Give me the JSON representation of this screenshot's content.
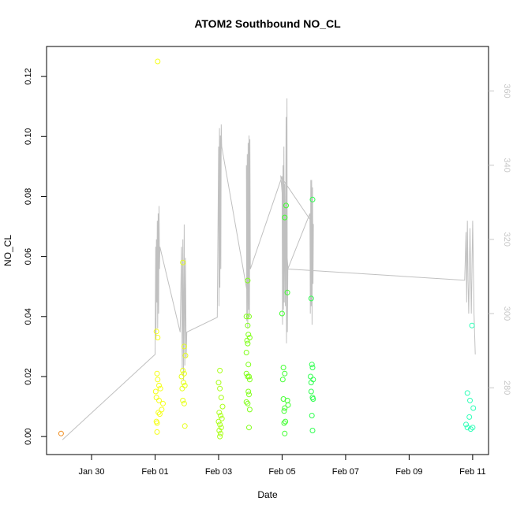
{
  "chart_data": {
    "type": "scatter",
    "title": "ATOM2 Southbound NO_CL",
    "xlabel": "Date",
    "ylabel": "NO_CL",
    "xlim": [
      "2020-01-28T14:00",
      "2020-02-11T12:00"
    ],
    "ylim": [
      -0.006,
      0.13
    ],
    "y2lim": [
      262,
      372
    ],
    "x_ticks": [
      {
        "label": "Jan 30",
        "date": "2020-01-30"
      },
      {
        "label": "Feb 01",
        "date": "2020-02-01"
      },
      {
        "label": "Feb 03",
        "date": "2020-02-03"
      },
      {
        "label": "Feb 05",
        "date": "2020-02-05"
      },
      {
        "label": "Feb 07",
        "date": "2020-02-07"
      },
      {
        "label": "Feb 09",
        "date": "2020-02-09"
      },
      {
        "label": "Feb 11",
        "date": "2020-02-11"
      }
    ],
    "y_ticks": [
      0.0,
      0.02,
      0.04,
      0.06,
      0.08,
      0.1,
      0.12
    ],
    "y2_ticks": [
      280,
      300,
      320,
      340,
      360
    ],
    "grid": false,
    "series": [
      {
        "marker": "open-circle",
        "color_by": "time",
        "points": [
          {
            "x": "2020-01-29T01:00",
            "y": 0.001,
            "color": "#f08c1c"
          },
          {
            "x": "2020-02-01T01:00",
            "y": 0.035,
            "color": "#f5ff1a"
          },
          {
            "x": "2020-02-01T02:00",
            "y": 0.033,
            "color": "#f5ff1a"
          },
          {
            "x": "2020-02-01T01:30",
            "y": 0.021,
            "color": "#f5ff1a"
          },
          {
            "x": "2020-02-01T02:00",
            "y": 0.019,
            "color": "#f5ff1a"
          },
          {
            "x": "2020-02-01T03:00",
            "y": 0.017,
            "color": "#f5ff1a"
          },
          {
            "x": "2020-02-01T00:30",
            "y": 0.015,
            "color": "#f5ff1a"
          },
          {
            "x": "2020-02-01T04:00",
            "y": 0.016,
            "color": "#f5ff1a"
          },
          {
            "x": "2020-02-01T01:00",
            "y": 0.013,
            "color": "#f5ff1a"
          },
          {
            "x": "2020-02-01T03:00",
            "y": 0.012,
            "color": "#f5ff1a"
          },
          {
            "x": "2020-02-01T06:00",
            "y": 0.011,
            "color": "#f5ff1a"
          },
          {
            "x": "2020-02-01T05:00",
            "y": 0.009,
            "color": "#f5ff1a"
          },
          {
            "x": "2020-02-01T02:30",
            "y": 0.008,
            "color": "#f5ff1a"
          },
          {
            "x": "2020-02-01T03:30",
            "y": 0.0075,
            "color": "#f5ff1a"
          },
          {
            "x": "2020-02-01T01:00",
            "y": 0.005,
            "color": "#f5ff1a"
          },
          {
            "x": "2020-02-01T01:30",
            "y": 0.0045,
            "color": "#f5ff1a"
          },
          {
            "x": "2020-02-01T01:30",
            "y": 0.0015,
            "color": "#f5ff1a"
          },
          {
            "x": "2020-02-01T02:00",
            "y": 0.125,
            "color": "#f5ff1a"
          },
          {
            "x": "2020-02-01T21:00",
            "y": 0.058,
            "color": "#e6ff1a"
          },
          {
            "x": "2020-02-01T22:00",
            "y": 0.03,
            "color": "#e6ff1a"
          },
          {
            "x": "2020-02-01T23:00",
            "y": 0.027,
            "color": "#e6ff1a"
          },
          {
            "x": "2020-02-01T21:00",
            "y": 0.022,
            "color": "#e6ff1a"
          },
          {
            "x": "2020-02-01T22:00",
            "y": 0.021,
            "color": "#e6ff1a"
          },
          {
            "x": "2020-02-01T20:00",
            "y": 0.02,
            "color": "#e6ff1a"
          },
          {
            "x": "2020-02-01T21:30",
            "y": 0.018,
            "color": "#e6ff1a"
          },
          {
            "x": "2020-02-01T22:30",
            "y": 0.017,
            "color": "#e6ff1a"
          },
          {
            "x": "2020-02-01T20:30",
            "y": 0.016,
            "color": "#e6ff1a"
          },
          {
            "x": "2020-02-01T21:00",
            "y": 0.012,
            "color": "#e6ff1a"
          },
          {
            "x": "2020-02-01T22:00",
            "y": 0.011,
            "color": "#e6ff1a"
          },
          {
            "x": "2020-02-01T22:30",
            "y": 0.0035,
            "color": "#e6ff1a"
          },
          {
            "x": "2020-02-03T01:00",
            "y": 0.022,
            "color": "#aaff1a"
          },
          {
            "x": "2020-02-03T00:00",
            "y": 0.018,
            "color": "#aaff1a"
          },
          {
            "x": "2020-02-03T01:00",
            "y": 0.016,
            "color": "#aaff1a"
          },
          {
            "x": "2020-02-03T02:00",
            "y": 0.013,
            "color": "#aaff1a"
          },
          {
            "x": "2020-02-03T03:00",
            "y": 0.01,
            "color": "#aaff1a"
          },
          {
            "x": "2020-02-03T00:30",
            "y": 0.008,
            "color": "#aaff1a"
          },
          {
            "x": "2020-02-03T01:30",
            "y": 0.007,
            "color": "#aaff1a"
          },
          {
            "x": "2020-02-03T02:30",
            "y": 0.006,
            "color": "#aaff1a"
          },
          {
            "x": "2020-02-03T00:00",
            "y": 0.005,
            "color": "#aaff1a"
          },
          {
            "x": "2020-02-03T01:00",
            "y": 0.004,
            "color": "#aaff1a"
          },
          {
            "x": "2020-02-03T02:00",
            "y": 0.003,
            "color": "#aaff1a"
          },
          {
            "x": "2020-02-03T00:30",
            "y": 0.002,
            "color": "#aaff1a"
          },
          {
            "x": "2020-02-03T01:30",
            "y": 0.001,
            "color": "#aaff1a"
          },
          {
            "x": "2020-02-03T01:00",
            "y": 0.0,
            "color": "#aaff1a"
          },
          {
            "x": "2020-02-03T22:00",
            "y": 0.052,
            "color": "#80ff1a"
          },
          {
            "x": "2020-02-03T21:00",
            "y": 0.04,
            "color": "#80ff1a"
          },
          {
            "x": "2020-02-03T23:00",
            "y": 0.04,
            "color": "#80ff1a"
          },
          {
            "x": "2020-02-03T22:00",
            "y": 0.037,
            "color": "#80ff1a"
          },
          {
            "x": "2020-02-03T22:30",
            "y": 0.034,
            "color": "#80ff1a"
          },
          {
            "x": "2020-02-03T23:30",
            "y": 0.033,
            "color": "#80ff1a"
          },
          {
            "x": "2020-02-03T21:30",
            "y": 0.032,
            "color": "#80ff1a"
          },
          {
            "x": "2020-02-03T22:00",
            "y": 0.031,
            "color": "#80ff1a"
          },
          {
            "x": "2020-02-03T21:00",
            "y": 0.028,
            "color": "#80ff1a"
          },
          {
            "x": "2020-02-03T22:30",
            "y": 0.024,
            "color": "#80ff1a"
          },
          {
            "x": "2020-02-03T21:00",
            "y": 0.021,
            "color": "#80ff1a"
          },
          {
            "x": "2020-02-03T22:00",
            "y": 0.02,
            "color": "#80ff1a"
          },
          {
            "x": "2020-02-03T23:00",
            "y": 0.02,
            "color": "#80ff1a"
          },
          {
            "x": "2020-02-03T23:30",
            "y": 0.019,
            "color": "#80ff1a"
          },
          {
            "x": "2020-02-03T22:30",
            "y": 0.015,
            "color": "#80ff1a"
          },
          {
            "x": "2020-02-03T23:00",
            "y": 0.014,
            "color": "#80ff1a"
          },
          {
            "x": "2020-02-03T21:00",
            "y": 0.0115,
            "color": "#80ff1a"
          },
          {
            "x": "2020-02-03T22:00",
            "y": 0.011,
            "color": "#80ff1a"
          },
          {
            "x": "2020-02-03T23:30",
            "y": 0.009,
            "color": "#80ff1a"
          },
          {
            "x": "2020-02-03T23:00",
            "y": 0.003,
            "color": "#80ff1a"
          },
          {
            "x": "2020-02-05T03:00",
            "y": 0.077,
            "color": "#40ff30"
          },
          {
            "x": "2020-02-05T02:00",
            "y": 0.073,
            "color": "#40ff30"
          },
          {
            "x": "2020-02-05T04:00",
            "y": 0.048,
            "color": "#40ff30"
          },
          {
            "x": "2020-02-05T00:00",
            "y": 0.041,
            "color": "#40ff30"
          },
          {
            "x": "2020-02-05T01:00",
            "y": 0.023,
            "color": "#40ff30"
          },
          {
            "x": "2020-02-05T02:00",
            "y": 0.021,
            "color": "#40ff30"
          },
          {
            "x": "2020-02-05T00:30",
            "y": 0.019,
            "color": "#40ff30"
          },
          {
            "x": "2020-02-05T01:00",
            "y": 0.0125,
            "color": "#40ff30"
          },
          {
            "x": "2020-02-05T04:00",
            "y": 0.012,
            "color": "#40ff30"
          },
          {
            "x": "2020-02-05T04:30",
            "y": 0.0105,
            "color": "#40ff30"
          },
          {
            "x": "2020-02-05T02:00",
            "y": 0.0095,
            "color": "#40ff30"
          },
          {
            "x": "2020-02-05T01:30",
            "y": 0.0085,
            "color": "#40ff30"
          },
          {
            "x": "2020-02-05T02:30",
            "y": 0.005,
            "color": "#40ff30"
          },
          {
            "x": "2020-02-05T01:30",
            "y": 0.0045,
            "color": "#40ff30"
          },
          {
            "x": "2020-02-05T02:00",
            "y": 0.001,
            "color": "#40ff30"
          },
          {
            "x": "2020-02-05T23:00",
            "y": 0.079,
            "color": "#30ff50"
          },
          {
            "x": "2020-02-05T22:00",
            "y": 0.046,
            "color": "#30ff50"
          },
          {
            "x": "2020-02-05T22:30",
            "y": 0.024,
            "color": "#30ff50"
          },
          {
            "x": "2020-02-05T23:00",
            "y": 0.023,
            "color": "#30ff50"
          },
          {
            "x": "2020-02-05T21:30",
            "y": 0.02,
            "color": "#30ff50"
          },
          {
            "x": "2020-02-05T22:00",
            "y": 0.018,
            "color": "#30ff50"
          },
          {
            "x": "2020-02-05T23:30",
            "y": 0.019,
            "color": "#30ff50"
          },
          {
            "x": "2020-02-05T22:00",
            "y": 0.015,
            "color": "#30ff50"
          },
          {
            "x": "2020-02-05T23:00",
            "y": 0.013,
            "color": "#30ff50"
          },
          {
            "x": "2020-02-05T23:30",
            "y": 0.0125,
            "color": "#30ff50"
          },
          {
            "x": "2020-02-05T22:30",
            "y": 0.007,
            "color": "#30ff50"
          },
          {
            "x": "2020-02-05T23:00",
            "y": 0.002,
            "color": "#30ff50"
          },
          {
            "x": "2020-02-10T23:30",
            "y": 0.037,
            "color": "#30ffb8"
          },
          {
            "x": "2020-02-10T20:00",
            "y": 0.0145,
            "color": "#30ffb8"
          },
          {
            "x": "2020-02-10T22:00",
            "y": 0.012,
            "color": "#30ffb8"
          },
          {
            "x": "2020-02-11T00:30",
            "y": 0.0095,
            "color": "#30ffb8"
          },
          {
            "x": "2020-02-10T21:30",
            "y": 0.0065,
            "color": "#30ffb8"
          },
          {
            "x": "2020-02-10T19:00",
            "y": 0.004,
            "color": "#30ffb8"
          },
          {
            "x": "2020-02-10T20:00",
            "y": 0.003,
            "color": "#30ffb8"
          },
          {
            "x": "2020-02-11T00:00",
            "y": 0.003,
            "color": "#30ffb8"
          },
          {
            "x": "2020-02-10T22:30",
            "y": 0.0025,
            "color": "#30ffb8"
          }
        ]
      },
      {
        "axis": "right",
        "type": "line",
        "color": "#c0c0c0",
        "points": [
          {
            "x": "2020-01-29T02:00",
            "y": 266
          },
          {
            "x": "2020-02-01T00:00",
            "y": 289
          },
          {
            "x": "2020-02-01T00:30",
            "y": 318
          },
          {
            "x": "2020-02-01T00:40",
            "y": 293
          },
          {
            "x": "2020-02-01T01:00",
            "y": 320
          },
          {
            "x": "2020-02-01T01:20",
            "y": 303
          },
          {
            "x": "2020-02-01T01:40",
            "y": 325
          },
          {
            "x": "2020-02-01T02:00",
            "y": 296
          },
          {
            "x": "2020-02-01T02:20",
            "y": 327
          },
          {
            "x": "2020-02-01T02:40",
            "y": 300
          },
          {
            "x": "2020-02-01T03:00",
            "y": 329
          },
          {
            "x": "2020-02-01T03:20",
            "y": 312
          },
          {
            "x": "2020-02-01T03:40",
            "y": 318
          },
          {
            "x": "2020-02-01T19:00",
            "y": 295
          },
          {
            "x": "2020-02-01T20:00",
            "y": 318
          },
          {
            "x": "2020-02-01T20:30",
            "y": 285
          },
          {
            "x": "2020-02-01T21:00",
            "y": 320
          },
          {
            "x": "2020-02-01T21:30",
            "y": 282
          },
          {
            "x": "2020-02-01T22:00",
            "y": 324
          },
          {
            "x": "2020-02-01T22:30",
            "y": 286
          },
          {
            "x": "2020-02-01T23:00",
            "y": 315
          },
          {
            "x": "2020-02-01T23:30",
            "y": 288
          },
          {
            "x": "2020-02-02T00:00",
            "y": 295
          },
          {
            "x": "2020-02-02T23:00",
            "y": 299
          },
          {
            "x": "2020-02-03T00:00",
            "y": 345
          },
          {
            "x": "2020-02-03T00:20",
            "y": 302
          },
          {
            "x": "2020-02-03T00:40",
            "y": 350
          },
          {
            "x": "2020-02-03T01:00",
            "y": 307
          },
          {
            "x": "2020-02-03T01:20",
            "y": 348
          },
          {
            "x": "2020-02-03T01:40",
            "y": 312
          },
          {
            "x": "2020-02-03T02:00",
            "y": 351
          },
          {
            "x": "2020-02-03T02:20",
            "y": 345
          },
          {
            "x": "2020-02-03T22:00",
            "y": 305
          },
          {
            "x": "2020-02-03T21:00",
            "y": 340
          },
          {
            "x": "2020-02-03T21:20",
            "y": 298
          },
          {
            "x": "2020-02-03T21:40",
            "y": 343
          },
          {
            "x": "2020-02-03T22:00",
            "y": 296
          },
          {
            "x": "2020-02-03T22:20",
            "y": 346
          },
          {
            "x": "2020-02-03T22:40",
            "y": 301
          },
          {
            "x": "2020-02-03T23:00",
            "y": 348
          },
          {
            "x": "2020-02-03T23:20",
            "y": 299
          },
          {
            "x": "2020-02-03T23:40",
            "y": 347
          },
          {
            "x": "2020-02-04T00:00",
            "y": 312
          },
          {
            "x": "2020-02-05T00:00",
            "y": 337
          },
          {
            "x": "2020-02-05T00:20",
            "y": 297
          },
          {
            "x": "2020-02-05T00:40",
            "y": 340
          },
          {
            "x": "2020-02-05T01:00",
            "y": 301
          },
          {
            "x": "2020-02-05T01:20",
            "y": 345
          },
          {
            "x": "2020-02-05T01:40",
            "y": 303
          },
          {
            "x": "2020-02-05T02:00",
            "y": 335
          },
          {
            "x": "2020-02-05T02:30",
            "y": 302
          },
          {
            "x": "2020-02-05T03:00",
            "y": 353
          },
          {
            "x": "2020-02-05T03:20",
            "y": 292
          },
          {
            "x": "2020-02-05T03:40",
            "y": 358
          },
          {
            "x": "2020-02-05T04:00",
            "y": 295
          },
          {
            "x": "2020-02-05T04:20",
            "y": 312
          },
          {
            "x": "2020-02-05T21:00",
            "y": 327
          },
          {
            "x": "2020-02-05T21:20",
            "y": 300
          },
          {
            "x": "2020-02-05T21:40",
            "y": 336
          },
          {
            "x": "2020-02-05T22:00",
            "y": 302
          },
          {
            "x": "2020-02-05T22:20",
            "y": 336
          },
          {
            "x": "2020-02-05T22:40",
            "y": 297
          },
          {
            "x": "2020-02-05T23:00",
            "y": 334
          },
          {
            "x": "2020-02-05T23:20",
            "y": 308
          },
          {
            "x": "2020-02-05T23:40",
            "y": 324
          },
          {
            "x": "2020-02-04T23:00",
            "y": 337
          },
          {
            "x": "2020-02-05T04:30",
            "y": 312
          },
          {
            "x": "2020-02-10T18:00",
            "y": 309
          },
          {
            "x": "2020-02-10T19:00",
            "y": 322
          },
          {
            "x": "2020-02-10T19:30",
            "y": 303
          },
          {
            "x": "2020-02-10T20:00",
            "y": 325
          },
          {
            "x": "2020-02-10T20:30",
            "y": 309
          },
          {
            "x": "2020-02-10T21:00",
            "y": 300
          },
          {
            "x": "2020-02-10T22:00",
            "y": 323
          },
          {
            "x": "2020-02-10T23:00",
            "y": 300
          },
          {
            "x": "2020-02-11T00:00",
            "y": 325
          },
          {
            "x": "2020-02-11T01:00",
            "y": 300
          },
          {
            "x": "2020-02-11T02:00",
            "y": 289
          }
        ]
      }
    ]
  }
}
